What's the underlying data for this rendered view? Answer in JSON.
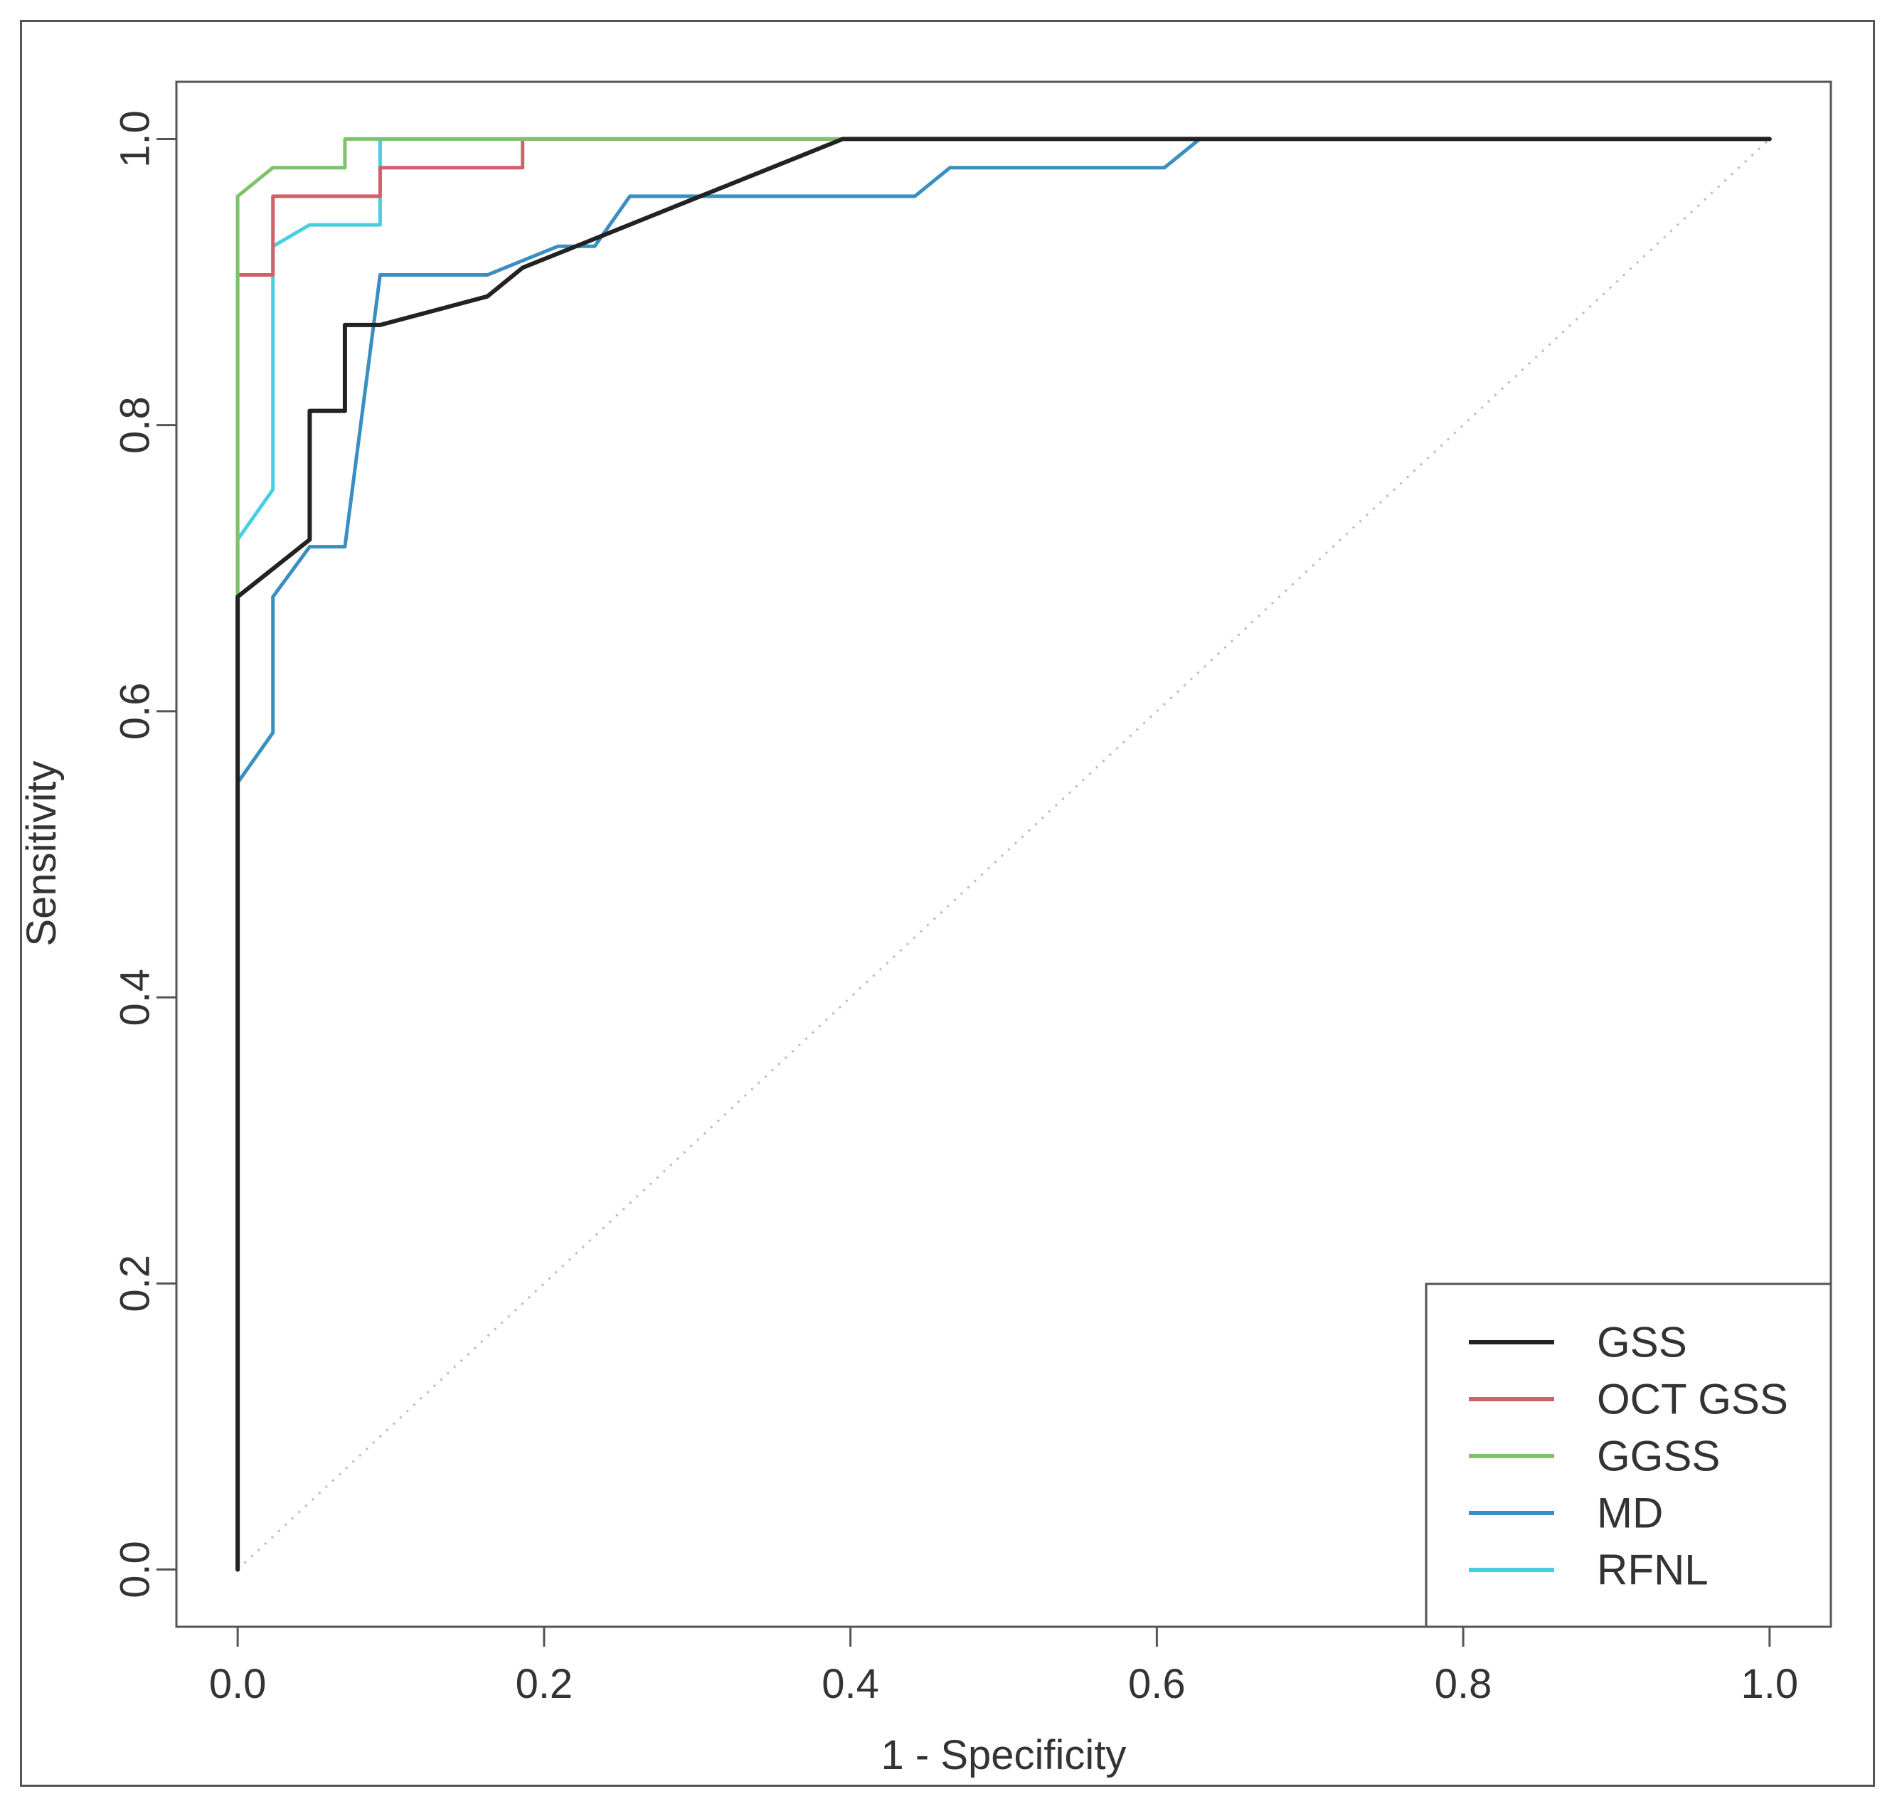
{
  "chart_data": {
    "type": "line",
    "title": "",
    "xlabel": "1 - Specificity",
    "ylabel": "Sensitivity",
    "xlim": [
      -0.04,
      1.04
    ],
    "ylim": [
      -0.04,
      1.04
    ],
    "xticks": [
      0.0,
      0.2,
      0.4,
      0.6,
      0.8,
      1.0
    ],
    "yticks": [
      0.0,
      0.2,
      0.4,
      0.6,
      0.8,
      1.0
    ],
    "xtick_labels": [
      "0.0",
      "0.2",
      "0.4",
      "0.6",
      "0.8",
      "1.0"
    ],
    "ytick_labels": [
      "0.0",
      "0.2",
      "0.4",
      "0.6",
      "0.8",
      "1.0"
    ],
    "legend_position": "bottom-right",
    "reference_line": {
      "x": [
        0,
        1
      ],
      "y": [
        0,
        1
      ],
      "style": "dotted",
      "color": "#bbbbbb"
    },
    "series": [
      {
        "name": "GSS",
        "color": "#222222",
        "x": [
          0,
          0,
          0.047,
          0.047,
          0.07,
          0.07,
          0.093,
          0.163,
          0.186,
          0.395,
          1.0
        ],
        "y": [
          0,
          0.68,
          0.72,
          0.81,
          0.81,
          0.87,
          0.87,
          0.89,
          0.91,
          1.0,
          1.0
        ]
      },
      {
        "name": "OCT GSS",
        "color": "#d0606a",
        "x": [
          0,
          0,
          0.023,
          0.023,
          0.093,
          0.093,
          0.186,
          0.186,
          1.0
        ],
        "y": [
          0,
          0.905,
          0.905,
          0.96,
          0.96,
          0.98,
          0.98,
          1.0,
          1.0
        ]
      },
      {
        "name": "GGSS",
        "color": "#7cc36a",
        "x": [
          0,
          0,
          0.023,
          0.07,
          0.07,
          1.0
        ],
        "y": [
          0,
          0.96,
          0.98,
          0.98,
          1.0,
          1.0
        ]
      },
      {
        "name": "MD",
        "color": "#3a8fc0",
        "x": [
          0,
          0,
          0.023,
          0.023,
          0.047,
          0.07,
          0.093,
          0.163,
          0.209,
          0.233,
          0.256,
          0.442,
          0.465,
          0.605,
          0.628,
          1.0
        ],
        "y": [
          0,
          0.55,
          0.585,
          0.68,
          0.715,
          0.715,
          0.905,
          0.905,
          0.925,
          0.925,
          0.96,
          0.96,
          0.98,
          0.98,
          1.0,
          1.0
        ]
      },
      {
        "name": "RFNL",
        "color": "#45d0e0",
        "x": [
          0,
          0,
          0.023,
          0.023,
          0.047,
          0.093,
          0.093,
          1.0
        ],
        "y": [
          0.02,
          0.72,
          0.755,
          0.925,
          0.94,
          0.94,
          1.0,
          1.0
        ]
      }
    ]
  }
}
